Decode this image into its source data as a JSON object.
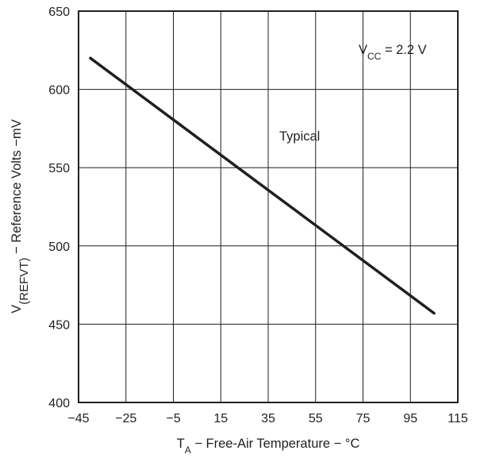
{
  "chart_data": {
    "type": "line",
    "title": "",
    "xlabel": {
      "main": "T",
      "sub": "A",
      "rest": " − Free-Air Temperature − °C"
    },
    "ylabel": {
      "main": "V",
      "sub": "(REFVT)",
      "rest": " − Reference Volts −mV"
    },
    "xlim": [
      -45,
      115
    ],
    "ylim": [
      400,
      650
    ],
    "xticks": [
      -45,
      -25,
      -5,
      15,
      35,
      55,
      75,
      95,
      115
    ],
    "xtick_labels": [
      "−45",
      "−25",
      "−5",
      "15",
      "35",
      "55",
      "75",
      "95",
      "115"
    ],
    "yticks": [
      400,
      450,
      500,
      550,
      600,
      650
    ],
    "ytick_labels": [
      "400",
      "450",
      "500",
      "550",
      "600",
      "650"
    ],
    "grid": true,
    "legend": "none",
    "series": [
      {
        "x": [
          -40,
          105
        ],
        "y": [
          620,
          457
        ]
      }
    ],
    "annotations": {
      "condition": {
        "main": "V",
        "sub": "CC",
        "rest": " = 2.2 V"
      },
      "typical": "Typical"
    },
    "colors": {
      "line": "#231f20",
      "grid": "#231f20",
      "text": "#231f20"
    }
  }
}
